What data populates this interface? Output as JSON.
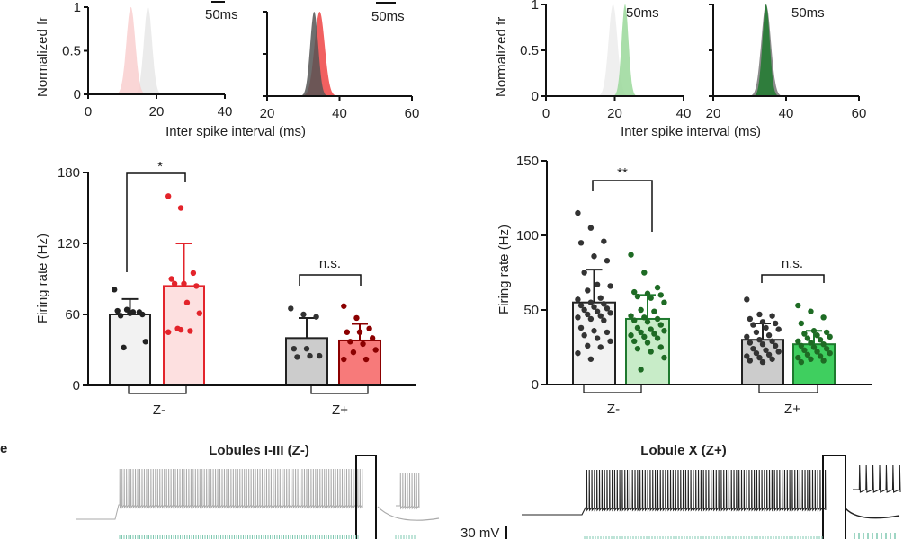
{
  "panel_label_e": "e",
  "chart_data": [
    {
      "type": "area",
      "id": "isi-z-minus-red",
      "ylabel": "Normalized fr",
      "xlabel": "Inter spike interval (ms)",
      "xlim": [
        0,
        40
      ],
      "ylim": [
        0,
        1
      ],
      "xticks": [
        "0",
        "20",
        "40"
      ],
      "yticks": [
        "0",
        "0.5",
        "1"
      ],
      "scale_label": "50ms",
      "series": [
        {
          "peak": 17.5,
          "width": 1.2,
          "color": "#e8e8e8"
        },
        {
          "peak": 12.5,
          "width": 1.3,
          "color": "#f9cfcf"
        }
      ]
    },
    {
      "type": "area",
      "id": "isi-z-plus-red",
      "xlim": [
        20,
        60
      ],
      "ylim": [
        0,
        1
      ],
      "xticks": [
        "20",
        "40",
        "60"
      ],
      "scale_label": "50ms",
      "series": [
        {
          "peak": 34.5,
          "width": 1.4,
          "color": "#ee4444"
        },
        {
          "peak": 33,
          "width": 1.1,
          "color": "#555555"
        }
      ]
    },
    {
      "type": "area",
      "id": "isi-z-minus-green",
      "ylabel": "Normalized fr",
      "xlabel": "Inter spike interval (ms)",
      "xlim": [
        0,
        40
      ],
      "ylim": [
        0,
        1
      ],
      "xticks": [
        "0",
        "20",
        "40"
      ],
      "yticks": [
        "0",
        "0.5",
        "1"
      ],
      "scale_label": "50ms",
      "series": [
        {
          "peak": 19.5,
          "width": 1.3,
          "color": "#ececec"
        },
        {
          "peak": 23,
          "width": 1.0,
          "color": "#9ad89a"
        }
      ]
    },
    {
      "type": "area",
      "id": "isi-z-plus-green",
      "xlim": [
        20,
        60
      ],
      "ylim": [
        0,
        1
      ],
      "xticks": [
        "20",
        "40",
        "60"
      ],
      "scale_label": "50ms",
      "series": [
        {
          "peak": 34.5,
          "width": 1.3,
          "color": "#777777"
        },
        {
          "peak": 34.5,
          "width": 1.0,
          "color": "#1e7a2e"
        }
      ]
    },
    {
      "type": "bar",
      "id": "firing-rate-red",
      "ylabel": "Firing rate (Hz)",
      "ylim": [
        0,
        180
      ],
      "yticks": [
        "0",
        "60",
        "120",
        "180"
      ],
      "categories": [
        "Z-",
        "Z+"
      ],
      "bars": [
        {
          "group": "Z-",
          "mean": 60,
          "sd_top": 73,
          "fill": "#f2f2f2",
          "stroke": "#222222",
          "dot": "#222222",
          "points": [
            81,
            64,
            62,
            63,
            61,
            60,
            59,
            62,
            37,
            32
          ]
        },
        {
          "group": "Z-",
          "mean": 84,
          "sd_top": 120,
          "fill": "#fde0e0",
          "stroke": "#e3242b",
          "dot": "#e3242b",
          "points": [
            160,
            150,
            95,
            90,
            86,
            84,
            86,
            70,
            61,
            48,
            46,
            45,
            47
          ]
        },
        {
          "group": "Z+",
          "mean": 40,
          "sd_top": 57,
          "fill": "#cccccc",
          "stroke": "#222222",
          "dot": "#333333",
          "points": [
            65,
            60,
            58,
            31,
            31,
            25,
            24,
            25
          ]
        },
        {
          "group": "Z+",
          "mean": 38,
          "sd_top": 52,
          "fill": "#f77a7a",
          "stroke": "#8b0000",
          "dot": "#8b0000",
          "points": [
            67,
            57,
            48,
            45,
            45,
            40,
            37,
            35,
            30,
            28,
            22,
            22
          ]
        }
      ],
      "significance": [
        "*",
        "n.s."
      ]
    },
    {
      "type": "bar",
      "id": "firing-rate-green",
      "ylabel": "Firing rate (Hz)",
      "ylim": [
        0,
        150
      ],
      "yticks": [
        "0",
        "50",
        "100",
        "150"
      ],
      "categories": [
        "Z-",
        "Z+"
      ],
      "bars": [
        {
          "group": "Z-",
          "mean": 55,
          "sd_top": 77,
          "fill": "#f2f2f2",
          "stroke": "#222222",
          "dot": "#333333",
          "points": [
            115,
            105,
            96,
            95,
            86,
            83,
            75,
            67,
            66,
            63,
            58,
            57,
            55,
            54,
            53,
            52,
            51,
            50,
            49,
            48,
            47,
            46,
            45,
            44,
            43,
            38,
            36,
            35,
            33,
            31,
            29,
            26,
            25,
            21,
            17
          ]
        },
        {
          "group": "Z-",
          "mean": 44,
          "sd_top": 60,
          "fill": "#c8ecc8",
          "stroke": "#1e7a2e",
          "dot": "#1e6b24",
          "points": [
            87,
            75,
            65,
            62,
            61,
            60,
            59,
            58,
            55,
            50,
            49,
            46,
            45,
            44,
            43,
            42,
            40,
            38,
            37,
            36,
            35,
            34,
            33,
            32,
            31,
            29,
            28,
            25,
            24,
            22,
            18,
            10
          ]
        },
        {
          "group": "Z+",
          "mean": 30,
          "sd_top": 41,
          "fill": "#cccccc",
          "stroke": "#222222",
          "dot": "#333333",
          "points": [
            57,
            47,
            46,
            44,
            42,
            41,
            40,
            38,
            37,
            35,
            33,
            32,
            30,
            29,
            28,
            27,
            26,
            24,
            23,
            22,
            21,
            20,
            19,
            18,
            17,
            16,
            15
          ]
        },
        {
          "group": "Z+",
          "mean": 27,
          "sd_top": 36,
          "fill": "#3fcf5f",
          "stroke": "#1e7a2e",
          "dot": "#1e6b24",
          "points": [
            53,
            49,
            45,
            41,
            36,
            35,
            34,
            33,
            32,
            31,
            30,
            29,
            28,
            27,
            26,
            25,
            24,
            23,
            22,
            21,
            20,
            19,
            18,
            17,
            16,
            15
          ]
        }
      ],
      "significance": [
        "**",
        "n.s."
      ]
    }
  ],
  "traces": {
    "left_title": "Lobules I-III (Z-)",
    "right_title": "Lobule X (Z+)",
    "scale_label": "30 mV",
    "colors": {
      "left": "#aaaaaa",
      "right": "#222222",
      "bottom": "#7fc8b0"
    }
  }
}
